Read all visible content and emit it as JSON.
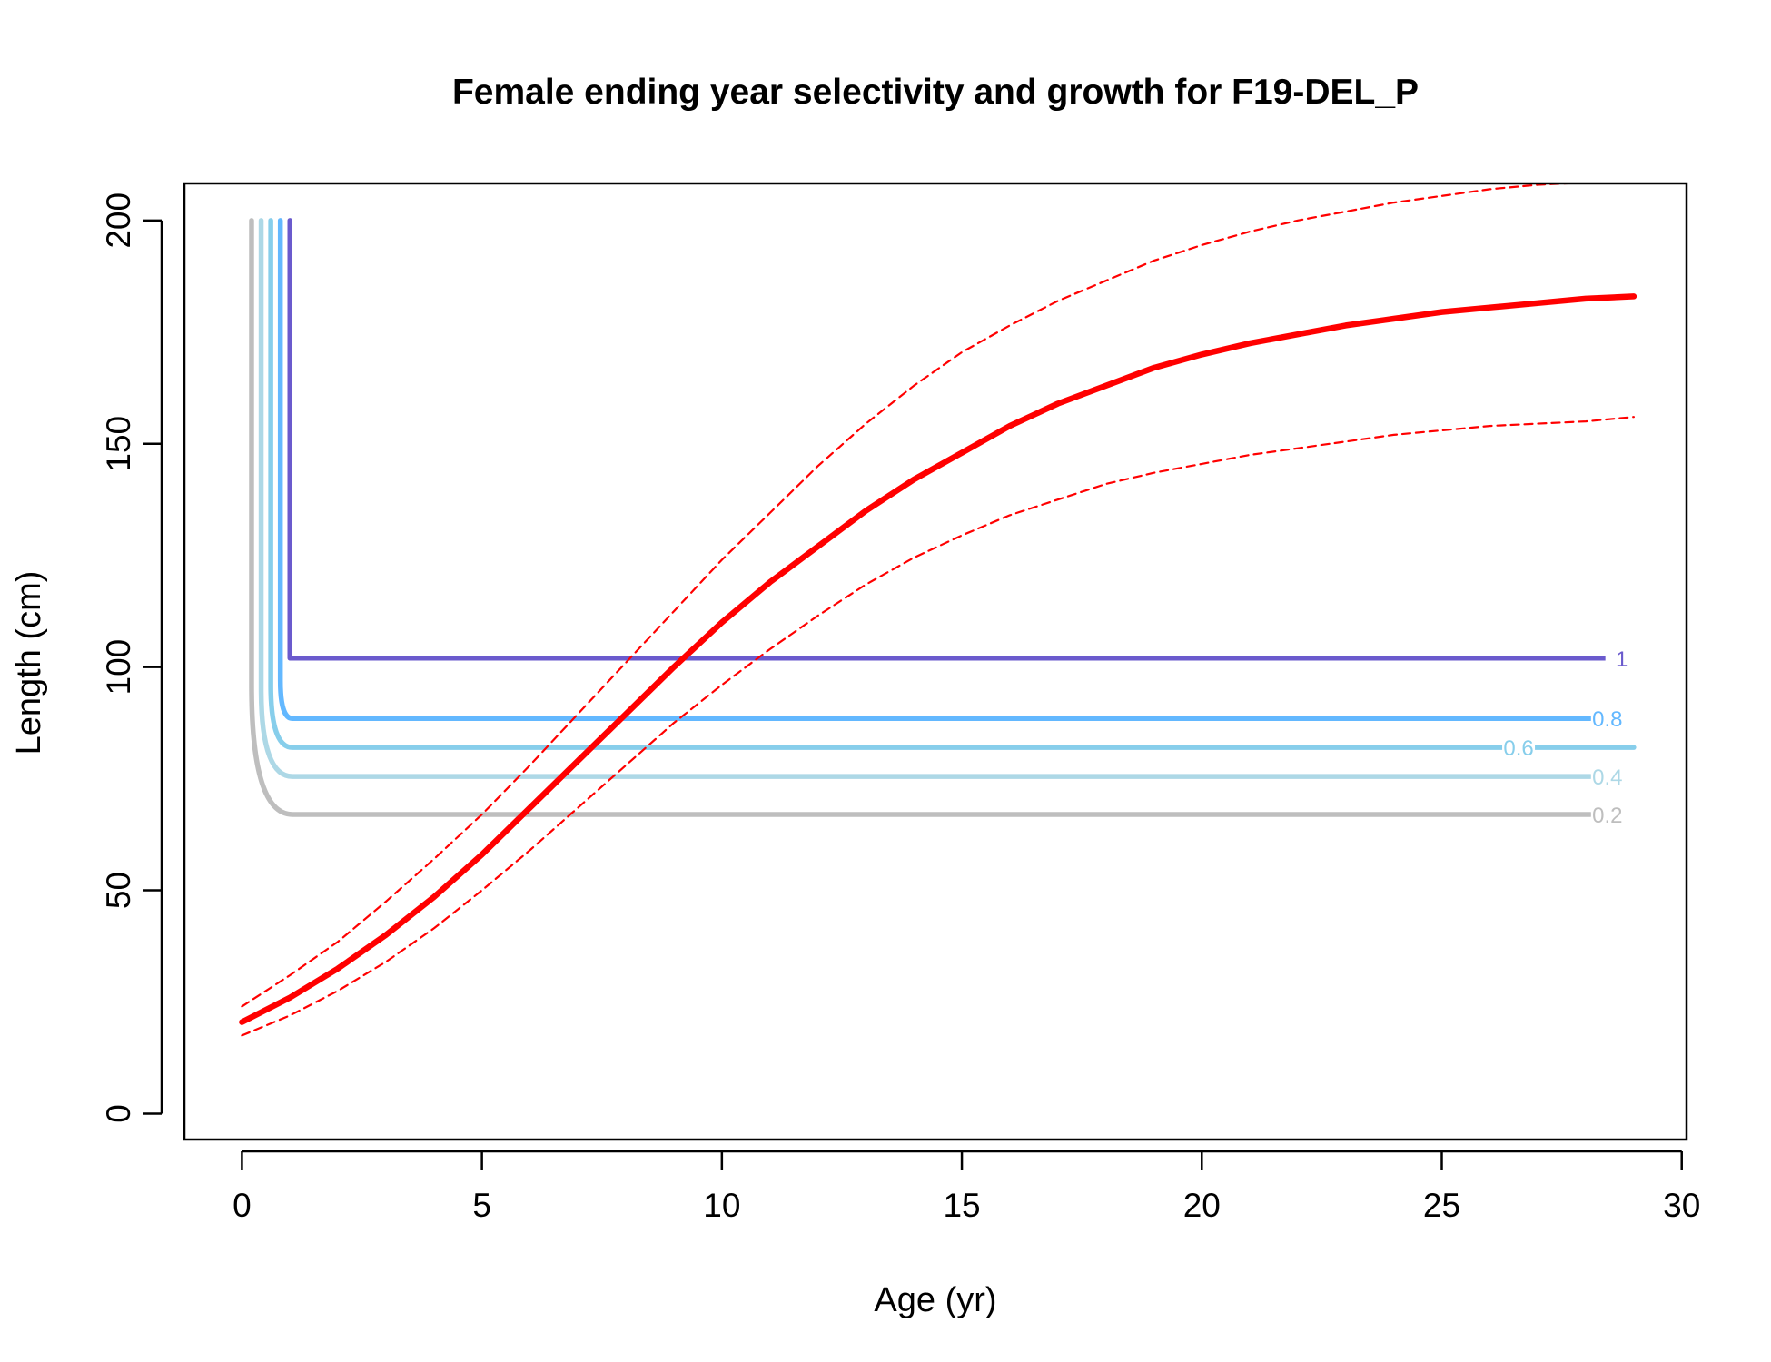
{
  "chart_data": {
    "type": "line",
    "title": "Female ending year selectivity and growth for F19-DEL_P",
    "xlabel": "Age (yr)",
    "ylabel": "Length (cm)",
    "xlim": [
      -1.2,
      30.1
    ],
    "ylim": [
      -5.8,
      208.3
    ],
    "x_ticks": [
      0,
      5,
      10,
      15,
      20,
      25,
      30
    ],
    "y_ticks": [
      0,
      50,
      100,
      150,
      200
    ],
    "grid": false,
    "legend": "none",
    "growth": {
      "color": "#ff0000",
      "mean": {
        "name": "",
        "x": [
          0,
          1,
          2,
          3,
          4,
          5,
          6,
          7,
          8,
          9,
          10,
          11,
          12,
          13,
          14,
          15,
          16,
          17,
          18,
          19,
          20,
          21,
          22,
          23,
          24,
          25,
          26,
          27,
          28,
          29
        ],
        "y": [
          20.5,
          26,
          32.5,
          40,
          48.5,
          58,
          68.5,
          79,
          89.5,
          100,
          110,
          119,
          127,
          135,
          142,
          148,
          154,
          159,
          163,
          167,
          170,
          172.5,
          174.5,
          176.5,
          178,
          179.5,
          180.5,
          181.5,
          182.5,
          183
        ]
      },
      "upper": {
        "name": "",
        "x": [
          0,
          1,
          2,
          3,
          4,
          5,
          6,
          7,
          8,
          9,
          10,
          11,
          12,
          13,
          14,
          15,
          16,
          17,
          18,
          19,
          20,
          21,
          22,
          23,
          24,
          25,
          26,
          27,
          28,
          29
        ],
        "y": [
          24,
          31,
          38.5,
          47.5,
          57,
          67,
          78,
          89.5,
          101,
          112.5,
          124,
          134.5,
          145,
          154.5,
          163,
          170.5,
          176.5,
          182,
          186.5,
          191,
          194.5,
          197.5,
          200,
          202,
          204,
          205.5,
          207,
          208,
          208.5,
          209
        ]
      },
      "lower": {
        "name": "",
        "x": [
          0,
          1,
          2,
          3,
          4,
          5,
          6,
          7,
          8,
          9,
          10,
          11,
          12,
          13,
          14,
          15,
          16,
          17,
          18,
          19,
          20,
          21,
          22,
          23,
          24,
          25,
          26,
          27,
          28,
          29
        ],
        "y": [
          17.5,
          22,
          27.5,
          34,
          41.5,
          50,
          59,
          68.5,
          78,
          87.5,
          96,
          104,
          111.5,
          118.5,
          124.5,
          129.5,
          134,
          137.5,
          141,
          143.5,
          145.5,
          147.5,
          149,
          150.5,
          152,
          153,
          154,
          154.5,
          155,
          156
        ]
      }
    },
    "selectivity_contours": [
      {
        "label": "0.2",
        "color": "#bebebe",
        "x_vertical": 0.2,
        "y_level": 67,
        "y_bend": 96,
        "x_end": 28.1,
        "label_x": 28.45
      },
      {
        "label": "0.4",
        "color": "#add8e6",
        "x_vertical": 0.4,
        "y_level": 75.5,
        "y_bend": 95,
        "x_end": 28.1,
        "label_x": 28.45
      },
      {
        "label": "0.6",
        "color": "#87ceeb",
        "x_vertical": 0.6,
        "y_level": 82,
        "y_bend": 96,
        "x_end": 29,
        "label_x": 26.6
      },
      {
        "label": "0.8",
        "color": "#63b8ff",
        "x_vertical": 0.8,
        "y_level": 88.5,
        "y_bend": 97,
        "x_end": 28.1,
        "label_x": 28.45
      },
      {
        "label": "1",
        "color": "#6a5acd",
        "x_vertical": 1.0,
        "y_level": 102,
        "y_bend": 102,
        "x_end": 28.45,
        "label_x": 28.75
      }
    ]
  }
}
